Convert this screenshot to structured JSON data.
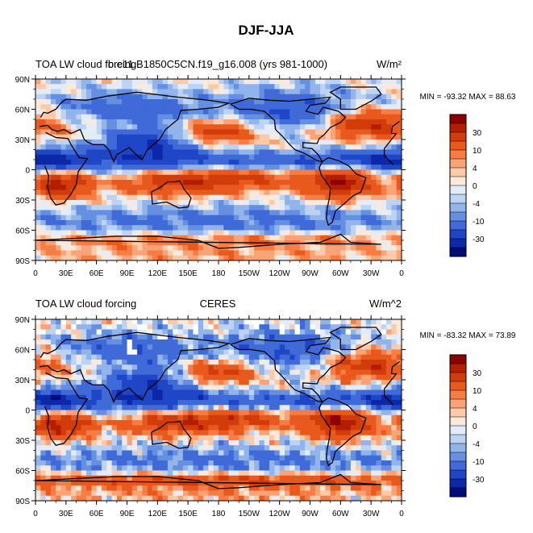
{
  "figure": {
    "title": "DJF-JJA"
  },
  "panels": [
    {
      "left_title": "TOA LW cloud forcing",
      "center_title": "b.e11.B1850C5CN.f19_g16.008 (yrs 981-1000)",
      "right_title": "W/m²",
      "stats": "MIN = -93.32 MAX =  88.63",
      "source": "model"
    },
    {
      "left_title": "TOA LW cloud forcing",
      "center_title": "CERES",
      "right_title": "W/m^2",
      "stats": "MIN = -83.32 MAX =  73.89",
      "source": "observation"
    }
  ],
  "axes": {
    "lon_ticks": [
      "0",
      "30E",
      "60E",
      "90E",
      "120E",
      "150E",
      "180",
      "150W",
      "120W",
      "90W",
      "60W",
      "30W",
      "0"
    ],
    "lat_ticks": [
      "90N",
      "60N",
      "30N",
      "0",
      "30S",
      "60S",
      "90S"
    ]
  },
  "colorbar": {
    "labels": [
      "30",
      "10",
      "4",
      "0",
      "-4",
      "-10",
      "-30"
    ],
    "colors": [
      "#8c0000",
      "#b41e00",
      "#d23c0a",
      "#e8591e",
      "#f77d45",
      "#f9a377",
      "#fccaa8",
      "#fde9dc",
      "#e3edf9",
      "#bcd3f3",
      "#91b4eb",
      "#658fe0",
      "#3f6ad8",
      "#1f46c7",
      "#0c27a8",
      "#000c7a"
    ]
  }
}
